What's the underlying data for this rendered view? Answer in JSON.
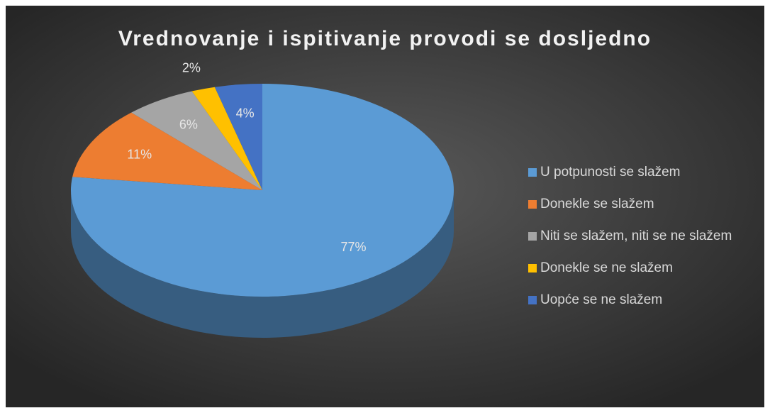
{
  "chart_data": {
    "type": "pie",
    "title": "Vrednovanje i ispitivanje provodi se dosljedno",
    "categories": [
      "U potpunosti se slažem",
      "Donekle se slažem",
      "Niti se slažem, niti se ne slažem",
      "Donekle se ne slažem",
      "Uopće se ne slažem"
    ],
    "values": [
      77,
      11,
      6,
      2,
      4
    ],
    "value_labels": [
      "77%",
      "11%",
      "6%",
      "2%",
      "4%"
    ],
    "colors": [
      "#5b9bd5",
      "#ed7d31",
      "#a5a5a5",
      "#ffc000",
      "#4472c4"
    ],
    "legend": "right"
  }
}
